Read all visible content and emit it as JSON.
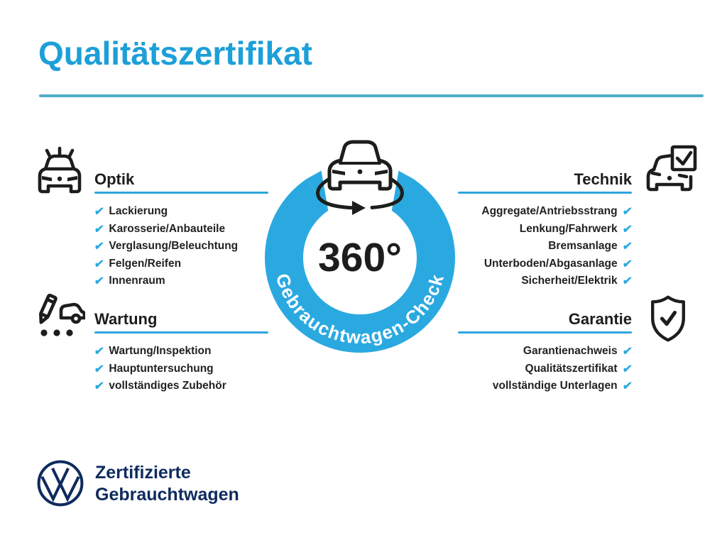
{
  "page": {
    "title": "Qualitätszertifikat"
  },
  "badge": {
    "center_text": "360°",
    "ring_text": "Gebrauchtwagen-Check"
  },
  "icons": {
    "check": "✔"
  },
  "sections": [
    {
      "id": "optik",
      "title": "Optik",
      "side": "left",
      "icon": "car-shine-icon",
      "items": [
        "Lackierung",
        "Karosserie/Anbauteile",
        "Verglasung/Beleuchtung",
        "Felgen/Reifen",
        "Innenraum"
      ]
    },
    {
      "id": "technik",
      "title": "Technik",
      "side": "right",
      "icon": "car-checkbox-icon",
      "items": [
        "Aggregate/Antriebsstrang",
        "Lenkung/Fahrwerk",
        "Bremsanlage",
        "Unterboden/Abgasanlage",
        "Sicherheit/Elektrik"
      ]
    },
    {
      "id": "wartung",
      "title": "Wartung",
      "side": "left",
      "icon": "service-checklist-icon",
      "items": [
        "Wartung/Inspektion",
        "Hauptuntersuchung",
        "vollständiges Zubehör"
      ]
    },
    {
      "id": "garantie",
      "title": "Garantie",
      "side": "right",
      "icon": "shield-check-icon",
      "items": [
        "Garantienachweis",
        "Qualitätszertifikat",
        "vollständige Unterlagen"
      ]
    }
  ],
  "footer": {
    "brand_line1": "Zertifizierte",
    "brand_line2": "Gebrauchtwagen"
  },
  "colors": {
    "title_blue": "#1d9fd8",
    "ring_blue": "#2aa9e0",
    "check_blue": "#2aa9e0",
    "underline_blue": "#2fa6dd",
    "divider_blue": "#4fadc9",
    "text_dark": "#1d1d1b",
    "vw_navy": "#0f2b5e"
  }
}
